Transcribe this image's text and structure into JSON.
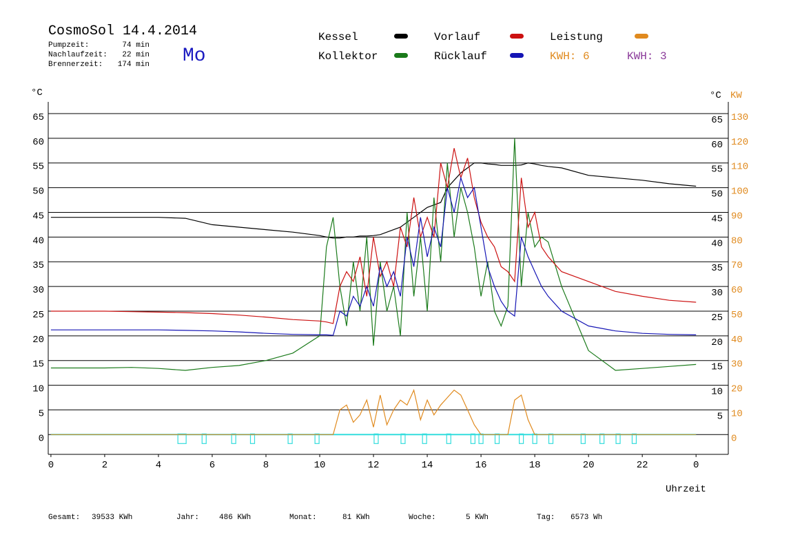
{
  "chart_data": {
    "type": "line",
    "title": "CosmoSol 14.4.2014",
    "weekday": "Mo",
    "info": [
      {
        "label": "Pumpzeit:",
        "value": "74 min"
      },
      {
        "label": "Nachlaufzeit:",
        "value": "22 min"
      },
      {
        "label": "Brennerzeit:",
        "value": "174 min"
      }
    ],
    "kwh_labels": [
      {
        "text": "KWH: 6",
        "color": "#e08a1e"
      },
      {
        "text": "KWH: 3",
        "color": "#8b3a9a"
      }
    ],
    "ylabel": "°C",
    "ylabel_right": "°C",
    "y2label": "KW",
    "xlabel": "Uhrzeit",
    "x": [
      0,
      1,
      2,
      3,
      4,
      5,
      6,
      7,
      8,
      9,
      10,
      10.25,
      10.5,
      10.75,
      11,
      11.25,
      11.5,
      11.75,
      12,
      12.25,
      12.5,
      12.75,
      13,
      13.25,
      13.5,
      13.75,
      14,
      14.25,
      14.5,
      14.75,
      15,
      15.25,
      15.5,
      15.75,
      16,
      16.25,
      16.5,
      16.75,
      17,
      17.25,
      17.5,
      17.75,
      18,
      18.25,
      18.5,
      19,
      20,
      21,
      22,
      23,
      24
    ],
    "series": [
      {
        "name": "Kessel",
        "color": "#000000",
        "values": [
          44,
          44,
          44,
          44,
          44,
          43.8,
          42.5,
          42,
          41.5,
          41,
          40.3,
          40,
          39.8,
          39.8,
          40,
          40,
          40.2,
          40.2,
          40.3,
          40.5,
          41,
          41.5,
          42,
          43,
          44,
          45,
          46,
          46.5,
          47,
          50,
          51.5,
          53,
          54,
          55,
          55,
          54.8,
          54.7,
          54.5,
          54.5,
          54.5,
          54.6,
          55,
          54.8,
          54.5,
          54.3,
          54,
          52.5,
          52,
          51.5,
          50.8,
          50.3
        ]
      },
      {
        "name": "Kollektor",
        "color": "#1a7a1a",
        "values": [
          13.5,
          13.5,
          13.5,
          13.6,
          13.4,
          13,
          13.6,
          14,
          15,
          16.5,
          20,
          38,
          44,
          30,
          22,
          35,
          25,
          40,
          18,
          35,
          25,
          30,
          20,
          45,
          28,
          40,
          25,
          48,
          35,
          55,
          40,
          50,
          45,
          38,
          28,
          35,
          25,
          22,
          26,
          60,
          30,
          45,
          38,
          40,
          39,
          30,
          17,
          13,
          13.4,
          13.8,
          14.2
        ]
      },
      {
        "name": "Vorlauf",
        "color": "#cc1111",
        "values": [
          25,
          25,
          25,
          24.9,
          24.8,
          24.7,
          24.5,
          24.2,
          23.8,
          23.3,
          23,
          22.8,
          22.5,
          30,
          33,
          31,
          36,
          28,
          40,
          32,
          35,
          30,
          42,
          38,
          48,
          40,
          44,
          40,
          55,
          50,
          58,
          52,
          56,
          48,
          43,
          40,
          38,
          34,
          33,
          31,
          52,
          42,
          45,
          38,
          36,
          33,
          31,
          29,
          28,
          27.2,
          26.8
        ]
      },
      {
        "name": "Rücklauf",
        "color": "#1515b5",
        "values": [
          21.2,
          21.2,
          21.2,
          21.2,
          21.2,
          21.1,
          21,
          20.8,
          20.5,
          20.3,
          20.2,
          20.2,
          20.1,
          25,
          24,
          28,
          26,
          30,
          26,
          34,
          30,
          33,
          28,
          40,
          34,
          44,
          36,
          42,
          38,
          50,
          45,
          52,
          48,
          50,
          42,
          34,
          30,
          27,
          25,
          24,
          40,
          36,
          33,
          30,
          28,
          25,
          22,
          21,
          20.5,
          20.3,
          20.2
        ]
      },
      {
        "name": "Leistung",
        "color": "#e08a1e",
        "axis": "y2",
        "values": [
          0,
          0,
          0,
          0,
          0,
          0,
          0,
          0,
          0,
          0,
          0,
          0,
          0,
          10,
          12,
          5,
          8,
          14,
          3,
          16,
          4,
          10,
          14,
          12,
          18,
          6,
          14,
          8,
          12,
          15,
          18,
          16,
          10,
          4,
          0,
          0,
          0,
          0,
          0,
          14,
          16,
          6,
          0,
          0,
          0,
          0,
          0,
          0,
          0,
          0,
          0
        ]
      }
    ],
    "pump_on": [
      4.8,
      5.7,
      6.8,
      7.5,
      8.9,
      9.9,
      12.1,
      13.1,
      13.9,
      14.8,
      15.7,
      16.0,
      16.6,
      17.5,
      18.0,
      18.6,
      19.8,
      20.5,
      21.1,
      21.7
    ],
    "pump_color": "#33dddd",
    "xlim": [
      -0.1,
      25.2
    ],
    "xticks": [
      0,
      2,
      4,
      6,
      8,
      10,
      12,
      14,
      16,
      18,
      20,
      22,
      {
        "value": 24,
        "label": "0"
      }
    ],
    "ylim": [
      -4,
      65
    ],
    "yticks": [
      0,
      5,
      10,
      15,
      20,
      25,
      30,
      35,
      40,
      45,
      50,
      55,
      60,
      65
    ],
    "yticks_right": [
      5,
      10,
      15,
      20,
      25,
      30,
      35,
      40,
      45,
      50,
      55,
      60,
      65
    ],
    "y2lim": [
      -8,
      130
    ],
    "y2ticks": [
      0,
      10,
      20,
      30,
      40,
      50,
      60,
      70,
      80,
      90,
      100,
      110,
      120,
      130
    ],
    "grid": true,
    "stats": [
      {
        "label": "Gesamt:",
        "value": "39533 KWh"
      },
      {
        "label": "Jahr:",
        "value": "486 KWh"
      },
      {
        "label": "Monat:",
        "value": "81 KWh"
      },
      {
        "label": "Woche:",
        "value": "5 KWh"
      },
      {
        "label": "Tag:",
        "value": "6573 Wh"
      }
    ]
  }
}
